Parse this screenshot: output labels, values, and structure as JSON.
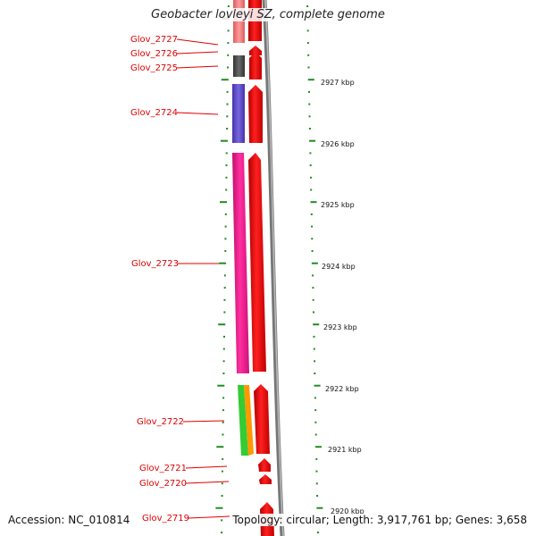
{
  "title": "Geobacter lovleyi SZ, complete genome",
  "footer": {
    "accession": "Accession: NC_010814",
    "topology": "Topology: circular; Length: 3,917,761 bp; Genes: 3,658"
  },
  "genes": [
    {
      "id": "Glov_2727",
      "color": "#f08080"
    },
    {
      "id": "Glov_2726",
      "color": "#ff3030"
    },
    {
      "id": "Glov_2725",
      "color": "#555555"
    },
    {
      "id": "Glov_2724",
      "color": "#6655cc"
    },
    {
      "id": "Glov_2723",
      "color": "#ff2090"
    },
    {
      "id": "Glov_2722",
      "color": "#33cc33"
    },
    {
      "id": "Glov_2721",
      "color": "#ff0000"
    },
    {
      "id": "Glov_2720",
      "color": "#ff0000"
    },
    {
      "id": "Glov_2719",
      "color": "#ff0000"
    }
  ],
  "kbp_labels": [
    "2927 kbp",
    "2926 kbp",
    "2925 kbp",
    "2924 kbp",
    "2923 kbp",
    "2922 kbp",
    "2921 kbp",
    "2920 kbp"
  ],
  "colors": {
    "cds": "#ff0000",
    "ticks": "#228b22",
    "backbone": "#808080",
    "label": "#e00000"
  }
}
